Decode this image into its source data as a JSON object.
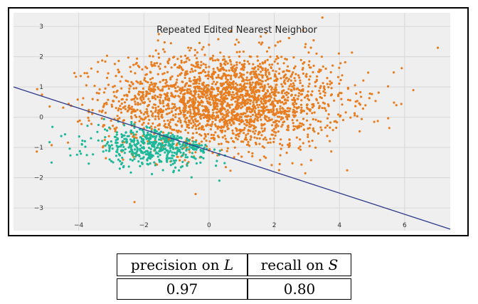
{
  "chart_data": {
    "type": "scatter",
    "title": "Repeated Edited Nearest Neighbor",
    "xlabel": "",
    "ylabel": "",
    "xlim": [
      -6.0,
      7.4
    ],
    "ylim": [
      -3.75,
      3.45
    ],
    "xticks": [
      -4,
      -2,
      0,
      2,
      4,
      6
    ],
    "yticks": [
      3,
      2,
      1,
      0,
      -1,
      -2,
      -3
    ],
    "grid": true,
    "series": [
      {
        "color": "#e87d20",
        "cluster": {
          "center": [
            0.5,
            0.55
          ],
          "spread": [
            1.8,
            0.8
          ],
          "count": 2400
        }
      },
      {
        "color": "#1cb899",
        "cluster": {
          "center": [
            -1.5,
            -0.9
          ],
          "spread": [
            1.1,
            0.35
          ],
          "count": 520
        }
      }
    ],
    "decision_line": {
      "color": "#2d3a8c",
      "x": [
        -6.0,
        7.4
      ],
      "y": [
        1.0,
        -3.7
      ]
    }
  },
  "table": {
    "header": {
      "left_text": "precision on ",
      "left_symbol": "L",
      "right_text": "recall on ",
      "right_symbol": "S"
    },
    "values": [
      "0.97",
      "0.80"
    ]
  }
}
